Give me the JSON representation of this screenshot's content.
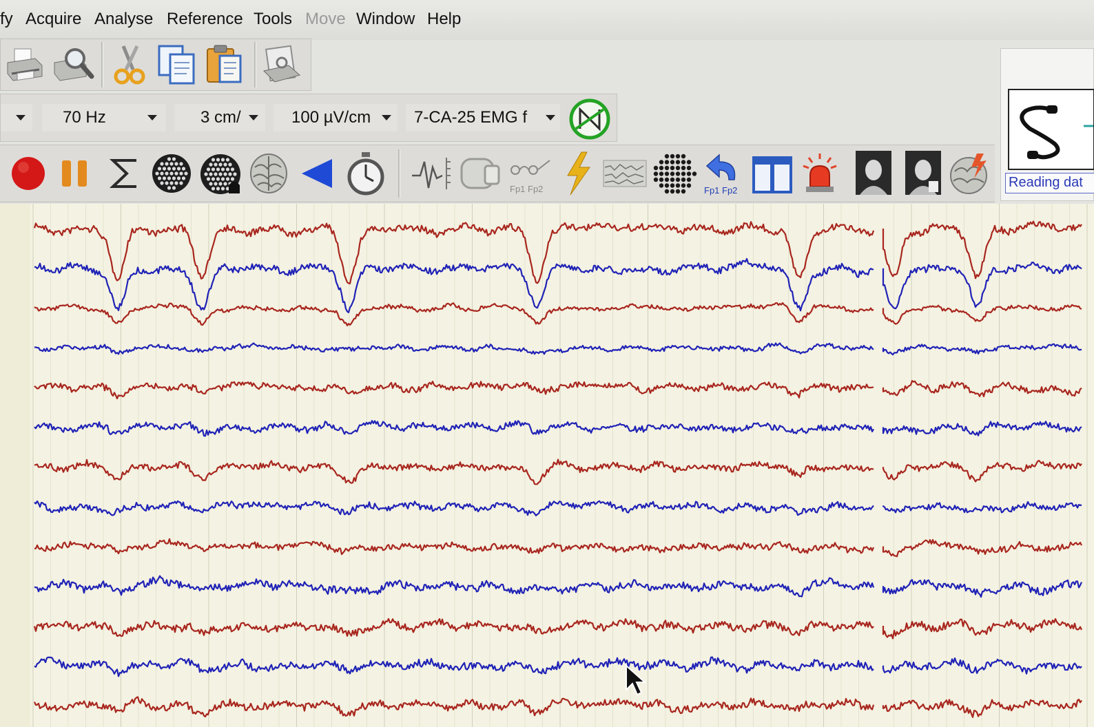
{
  "menubar": {
    "items": [
      {
        "label": "fy",
        "disabled": false
      },
      {
        "label": "Acquire",
        "disabled": false
      },
      {
        "label": "Analyse",
        "disabled": false
      },
      {
        "label": "Reference",
        "disabled": false
      },
      {
        "label": "Tools",
        "disabled": false
      },
      {
        "label": "Move",
        "disabled": true
      },
      {
        "label": "Window",
        "disabled": false
      },
      {
        "label": "Help",
        "disabled": false
      }
    ]
  },
  "toolbar_top": {
    "icons": [
      "print-icon",
      "print-preview-icon",
      "cut-icon",
      "copy-icon",
      "paste-icon",
      "page-setup-icon"
    ]
  },
  "selectors": {
    "filter": "70 Hz",
    "speed": "3 cm/",
    "sensitivity": "100 µV/cm",
    "montage": "7-CA-25 EMG f",
    "notch_icon": "notch-filter-icon"
  },
  "toolbar_bottom": {
    "icons": [
      "record-icon",
      "pause-icon",
      "sum-icon",
      "electrode-cap-icon",
      "electrode-cap-event-icon",
      "brain-icon",
      "back-arrow-icon",
      "stopwatch-icon",
      "waveform-icon",
      "impedance-icon",
      "electrode-pair-icon",
      "flash-stimulus-icon",
      "eeg-strip-icon",
      "electrode-grid-icon",
      "rereference-icon",
      "book-icon",
      "alarm-icon",
      "video-icon",
      "video-2-icon",
      "brain-map-icon"
    ],
    "electrode_labels": {
      "pair": "Fp1 Fp2",
      "reref": "Fp1 Fp2"
    }
  },
  "right_panel": {
    "status": "Reading dat",
    "cable_icon": "cable-icon"
  },
  "colors": {
    "trace_red": "#a8261e",
    "trace_blue": "#1f22b6",
    "record": "#d41818",
    "pause": "#e38a1e",
    "notch": "#24a324",
    "background": "#f4f2e2"
  },
  "eeg": {
    "channel_count": 13,
    "trace_colors": [
      "red",
      "blue",
      "red",
      "blue",
      "red",
      "blue",
      "red",
      "blue",
      "red",
      "blue",
      "red",
      "blue",
      "red"
    ],
    "blink_times": [
      0.08,
      0.16,
      0.3,
      0.48,
      0.73,
      0.82,
      0.9
    ]
  }
}
